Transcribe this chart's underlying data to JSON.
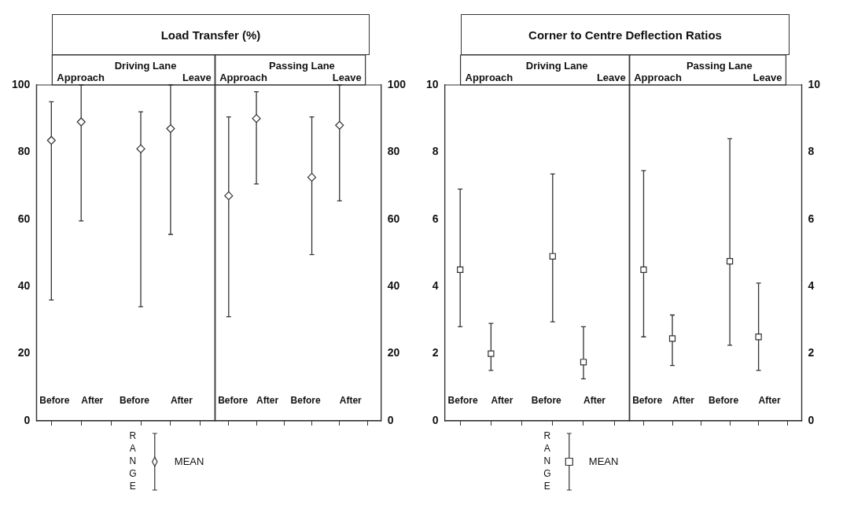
{
  "chart_data": [
    {
      "type": "scatter",
      "title": "Load Transfer (%)",
      "subtitle": "Driving Lane",
      "categories": [
        "Before",
        "After",
        null,
        "Before",
        "After",
        null
      ],
      "series": [
        {
          "name": "MEAN",
          "color": "#333333",
          "values": [
            83.5,
            89,
            null,
            81,
            87,
            null
          ],
          "errors": [
            [
              36,
              95
            ],
            [
              59.5,
              100
            ],
            null,
            [
              34,
              92
            ],
            [
              55.5,
              100
            ],
            null
          ]
        }
      ],
      "marker": "diamond",
      "ylim": [
        0,
        100
      ],
      "yticks": [
        0,
        20,
        40,
        60,
        80,
        100
      ],
      "annotations": [
        "Approach",
        "Leave"
      ],
      "legend": "bottom",
      "legend_title": "RANGE"
    },
    {
      "type": "scatter",
      "subtitle": "Passing Lane",
      "categories": [
        "Before",
        "After",
        null,
        "Before",
        "After",
        null
      ],
      "series": [
        {
          "color": "#333333",
          "axis": "y2",
          "values": [
            67,
            90,
            null,
            72.5,
            88,
            null
          ],
          "errors": [
            [
              31,
              90.5
            ],
            [
              70.5,
              98
            ],
            null,
            [
              49.5,
              90.5
            ],
            [
              65.5,
              100
            ],
            null
          ]
        }
      ],
      "marker": "diamond",
      "y2lim": [
        0,
        100
      ],
      "y2ticks": [
        0,
        20,
        40,
        60,
        80,
        100
      ],
      "annotations": [
        "Approach",
        "Leave"
      ]
    },
    {
      "type": "scatter",
      "title": "Corner to Centre Deflection Ratios",
      "subtitle": "Driving Lane",
      "categories": [
        "Before",
        "After",
        null,
        "Before",
        "After",
        null
      ],
      "series": [
        {
          "name": "MEAN",
          "color": "#333333",
          "values": [
            4.5,
            2.0,
            null,
            4.9,
            1.75,
            null
          ],
          "errors": [
            [
              2.8,
              6.9
            ],
            [
              1.5,
              2.9
            ],
            null,
            [
              2.95,
              7.35
            ],
            [
              1.25,
              2.8
            ],
            null
          ]
        }
      ],
      "marker": "square",
      "ylim": [
        0,
        10
      ],
      "yticks": [
        0,
        2,
        4,
        6,
        8,
        10
      ],
      "annotations": [
        "Approach",
        "Leave"
      ],
      "legend": "bottom",
      "legend_title": "RANGE"
    },
    {
      "type": "scatter",
      "subtitle": "Passing Lane",
      "categories": [
        "Before",
        "After",
        null,
        "Before",
        "After",
        null
      ],
      "series": [
        {
          "color": "#333333",
          "axis": "y2",
          "values": [
            4.5,
            2.45,
            null,
            4.75,
            2.5,
            null
          ],
          "errors": [
            [
              2.5,
              7.45
            ],
            [
              1.65,
              3.15
            ],
            null,
            [
              2.25,
              8.4
            ],
            [
              1.5,
              4.1
            ],
            null
          ]
        }
      ],
      "marker": "square",
      "y2lim": [
        0,
        10
      ],
      "y2ticks": [
        0,
        2,
        4,
        6,
        8,
        10
      ],
      "annotations": [
        "Approach",
        "Leave"
      ]
    }
  ]
}
